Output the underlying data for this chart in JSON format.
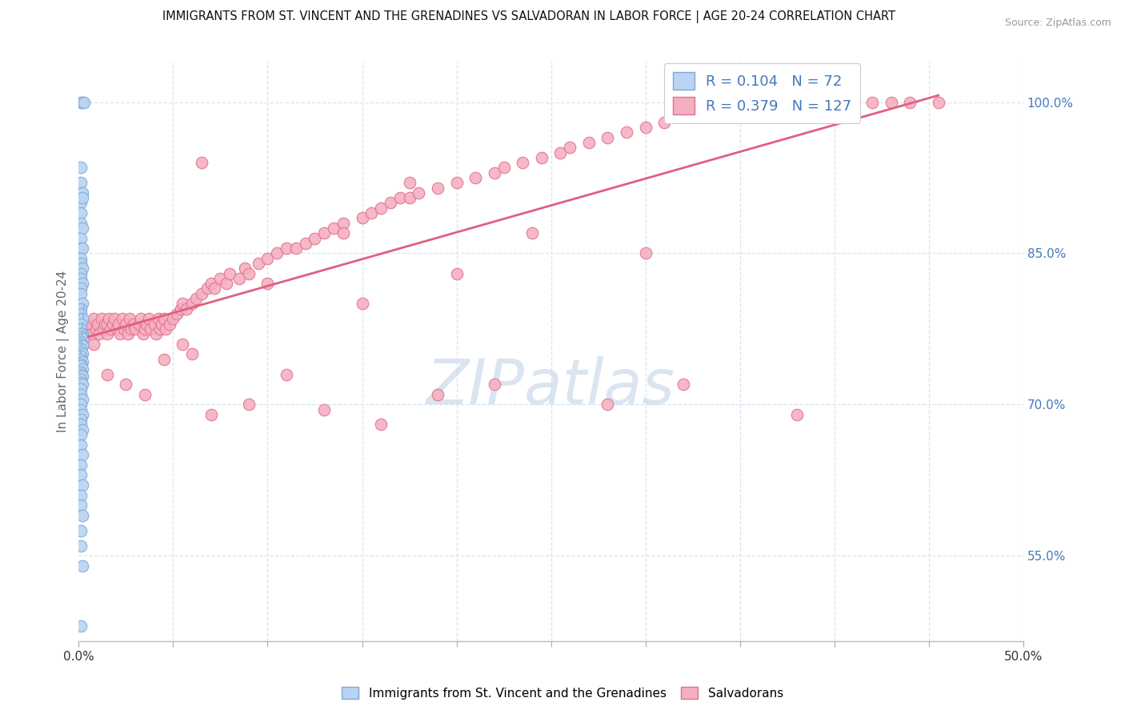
{
  "title": "IMMIGRANTS FROM ST. VINCENT AND THE GRENADINES VS SALVADORAN IN LABOR FORCE | AGE 20-24 CORRELATION CHART",
  "source": "Source: ZipAtlas.com",
  "ylabel": "In Labor Force | Age 20-24",
  "xlim": [
    0.0,
    0.5
  ],
  "ylim": [
    0.465,
    1.04
  ],
  "blue_R": 0.104,
  "blue_N": 72,
  "pink_R": 0.379,
  "pink_N": 127,
  "blue_color": "#b8d4f0",
  "pink_color": "#f5b0c0",
  "blue_edge": "#80a8d8",
  "pink_edge": "#e07090",
  "blue_trend_color": "#90b8e0",
  "pink_trend_color": "#e06080",
  "watermark_color": "#cdd9ec",
  "legend_label_blue": "Immigrants from St. Vincent and the Grenadines",
  "legend_label_pink": "Salvadorans",
  "ytick_right_values": [
    0.55,
    0.7,
    0.85,
    1.0
  ],
  "ytick_right_labels": [
    "55.0%",
    "70.0%",
    "85.0%",
    "100.0%"
  ],
  "grid_color": "#d8e4f0",
  "tick_color": "#4477bb",
  "blue_x": [
    0.001,
    0.002,
    0.003,
    0.001,
    0.001,
    0.002,
    0.001,
    0.002,
    0.001,
    0.001,
    0.002,
    0.001,
    0.001,
    0.002,
    0.001,
    0.001,
    0.002,
    0.001,
    0.001,
    0.002,
    0.001,
    0.001,
    0.002,
    0.001,
    0.001,
    0.002,
    0.001,
    0.001,
    0.002,
    0.001,
    0.001,
    0.002,
    0.001,
    0.001,
    0.002,
    0.001,
    0.001,
    0.002,
    0.001,
    0.001,
    0.002,
    0.001,
    0.001,
    0.002,
    0.001,
    0.001,
    0.002,
    0.001,
    0.001,
    0.002,
    0.001,
    0.001,
    0.002,
    0.001,
    0.001,
    0.002,
    0.001,
    0.001,
    0.002,
    0.001,
    0.001,
    0.002,
    0.001,
    0.001,
    0.002,
    0.001,
    0.001,
    0.002,
    0.001,
    0.001,
    0.002,
    0.001
  ],
  "blue_y": [
    1.0,
    1.0,
    1.0,
    0.935,
    0.92,
    0.91,
    0.9,
    0.905,
    0.89,
    0.88,
    0.875,
    0.865,
    0.855,
    0.855,
    0.845,
    0.84,
    0.835,
    0.83,
    0.825,
    0.82,
    0.815,
    0.81,
    0.8,
    0.795,
    0.79,
    0.785,
    0.78,
    0.775,
    0.77,
    0.77,
    0.768,
    0.765,
    0.762,
    0.76,
    0.758,
    0.755,
    0.752,
    0.75,
    0.748,
    0.745,
    0.742,
    0.74,
    0.738,
    0.735,
    0.732,
    0.73,
    0.728,
    0.725,
    0.722,
    0.72,
    0.715,
    0.71,
    0.705,
    0.7,
    0.695,
    0.69,
    0.685,
    0.68,
    0.675,
    0.67,
    0.66,
    0.65,
    0.64,
    0.63,
    0.62,
    0.61,
    0.6,
    0.59,
    0.575,
    0.56,
    0.54,
    0.48
  ],
  "pink_x": [
    0.005,
    0.006,
    0.007,
    0.008,
    0.009,
    0.01,
    0.011,
    0.012,
    0.013,
    0.014,
    0.015,
    0.015,
    0.016,
    0.017,
    0.018,
    0.019,
    0.02,
    0.021,
    0.022,
    0.023,
    0.024,
    0.025,
    0.026,
    0.027,
    0.028,
    0.029,
    0.03,
    0.032,
    0.033,
    0.034,
    0.035,
    0.036,
    0.037,
    0.038,
    0.04,
    0.041,
    0.042,
    0.043,
    0.044,
    0.045,
    0.046,
    0.048,
    0.05,
    0.052,
    0.054,
    0.055,
    0.057,
    0.06,
    0.062,
    0.065,
    0.068,
    0.07,
    0.072,
    0.075,
    0.078,
    0.08,
    0.085,
    0.088,
    0.09,
    0.095,
    0.1,
    0.105,
    0.11,
    0.115,
    0.12,
    0.125,
    0.13,
    0.135,
    0.14,
    0.15,
    0.155,
    0.16,
    0.165,
    0.17,
    0.175,
    0.18,
    0.19,
    0.2,
    0.21,
    0.22,
    0.225,
    0.235,
    0.245,
    0.255,
    0.26,
    0.27,
    0.28,
    0.29,
    0.3,
    0.31,
    0.32,
    0.33,
    0.34,
    0.35,
    0.36,
    0.38,
    0.39,
    0.4,
    0.42,
    0.43,
    0.44,
    0.455,
    0.008,
    0.015,
    0.025,
    0.035,
    0.045,
    0.06,
    0.07,
    0.09,
    0.11,
    0.13,
    0.16,
    0.19,
    0.22,
    0.28,
    0.32,
    0.38,
    0.2,
    0.15,
    0.1,
    0.055,
    0.14,
    0.24,
    0.3,
    0.175,
    0.065
  ],
  "pink_y": [
    0.775,
    0.78,
    0.77,
    0.785,
    0.775,
    0.78,
    0.77,
    0.785,
    0.775,
    0.78,
    0.78,
    0.77,
    0.785,
    0.775,
    0.78,
    0.785,
    0.775,
    0.78,
    0.77,
    0.785,
    0.775,
    0.78,
    0.77,
    0.785,
    0.775,
    0.78,
    0.775,
    0.78,
    0.785,
    0.77,
    0.775,
    0.78,
    0.785,
    0.775,
    0.78,
    0.77,
    0.785,
    0.775,
    0.78,
    0.785,
    0.775,
    0.78,
    0.785,
    0.79,
    0.795,
    0.8,
    0.795,
    0.8,
    0.805,
    0.81,
    0.815,
    0.82,
    0.815,
    0.825,
    0.82,
    0.83,
    0.825,
    0.835,
    0.83,
    0.84,
    0.845,
    0.85,
    0.855,
    0.855,
    0.86,
    0.865,
    0.87,
    0.875,
    0.88,
    0.885,
    0.89,
    0.895,
    0.9,
    0.905,
    0.905,
    0.91,
    0.915,
    0.92,
    0.925,
    0.93,
    0.935,
    0.94,
    0.945,
    0.95,
    0.955,
    0.96,
    0.965,
    0.97,
    0.975,
    0.98,
    0.985,
    0.99,
    0.995,
    1.0,
    1.0,
    1.0,
    1.0,
    1.0,
    1.0,
    1.0,
    1.0,
    1.0,
    0.76,
    0.73,
    0.72,
    0.71,
    0.745,
    0.75,
    0.69,
    0.7,
    0.73,
    0.695,
    0.68,
    0.71,
    0.72,
    0.7,
    0.72,
    0.69,
    0.83,
    0.8,
    0.82,
    0.76,
    0.87,
    0.87,
    0.85,
    0.92,
    0.94
  ]
}
